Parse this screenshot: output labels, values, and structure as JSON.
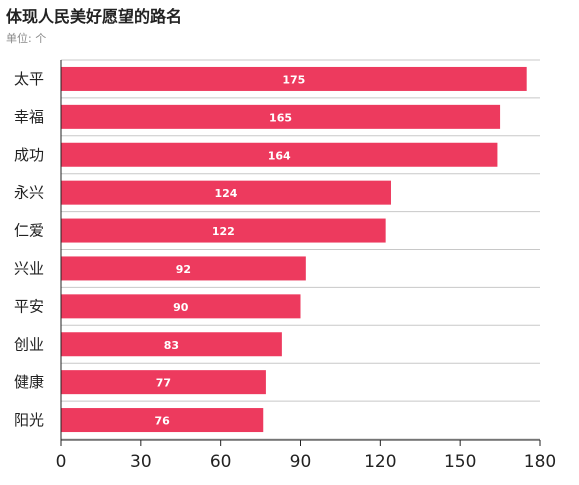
{
  "chart_data": {
    "type": "bar",
    "orientation": "horizontal",
    "title": "体现人民美好愿望的路名",
    "subtitle": "单位: 个",
    "categories": [
      "太平",
      "幸福",
      "成功",
      "永兴",
      "仁爱",
      "兴业",
      "平安",
      "创业",
      "健康",
      "阳光"
    ],
    "values": [
      175,
      165,
      164,
      124,
      122,
      92,
      90,
      83,
      77,
      76
    ],
    "value_labels": [
      "175",
      "165",
      "164",
      "124",
      "122",
      "92",
      "90",
      "83",
      "77",
      "76"
    ],
    "xlim": [
      0,
      180
    ],
    "xticks": [
      0,
      30,
      60,
      90,
      120,
      150,
      180
    ],
    "xtick_labels": [
      "0",
      "30",
      "60",
      "90",
      "120",
      "150",
      "180"
    ],
    "bar_color": "#ed3a5e",
    "grid": "horizontal separators between categories"
  }
}
